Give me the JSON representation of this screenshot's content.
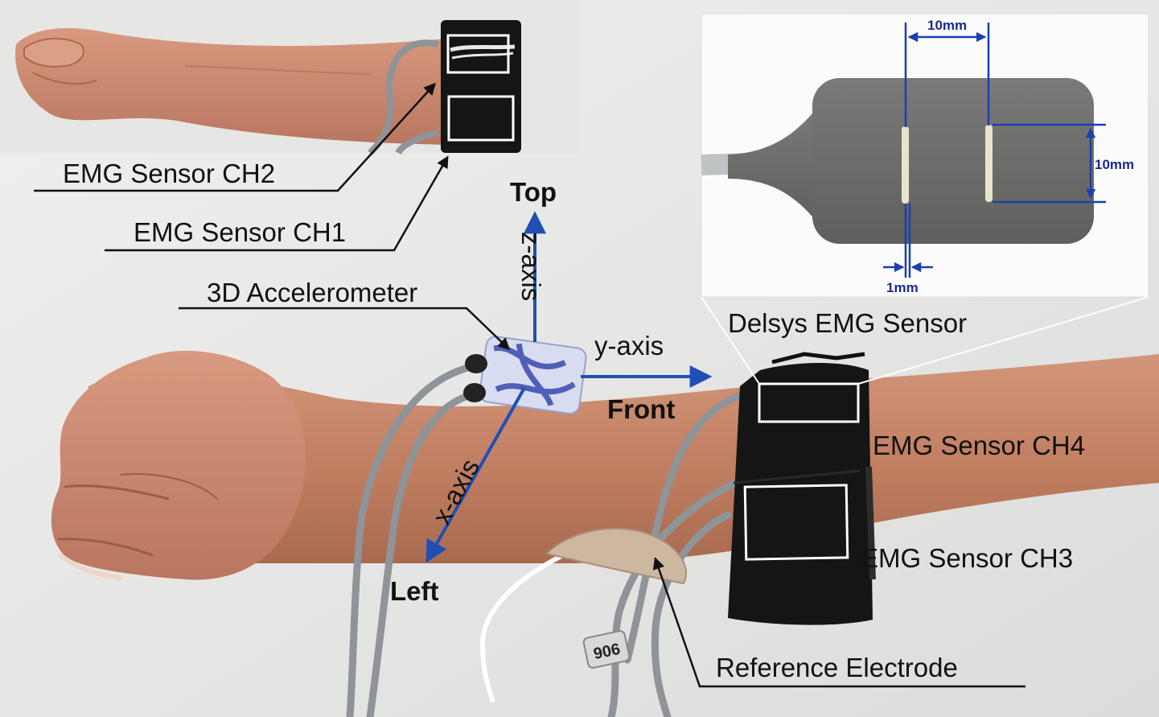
{
  "labels": {
    "emg_ch2": "EMG Sensor CH2",
    "emg_ch1": "EMG Sensor CH1",
    "accelerometer": "3D Accelerometer",
    "delsys": "Delsys EMG Sensor",
    "emg_ch4": "EMG Sensor CH4",
    "emg_ch3": "EMG Sensor CH3",
    "reference": "Reference Electrode"
  },
  "axes": {
    "top": "Top",
    "z_axis": "z-axis",
    "y_axis": "y-axis",
    "front": "Front",
    "x_axis": "x-axis",
    "left": "Left"
  },
  "dimensions": {
    "spacing": "10mm",
    "length": "10mm",
    "width": "1mm"
  },
  "cable_tag": "906",
  "colors": {
    "axis_arrow": "#1f4fb4",
    "dimension_line": "#1a3fb0",
    "skin": "#c4876a",
    "strap": "#151515",
    "sensor_body": "#6d6d6b",
    "cable": "#8e9498",
    "highlight_box": "#ffffff"
  }
}
